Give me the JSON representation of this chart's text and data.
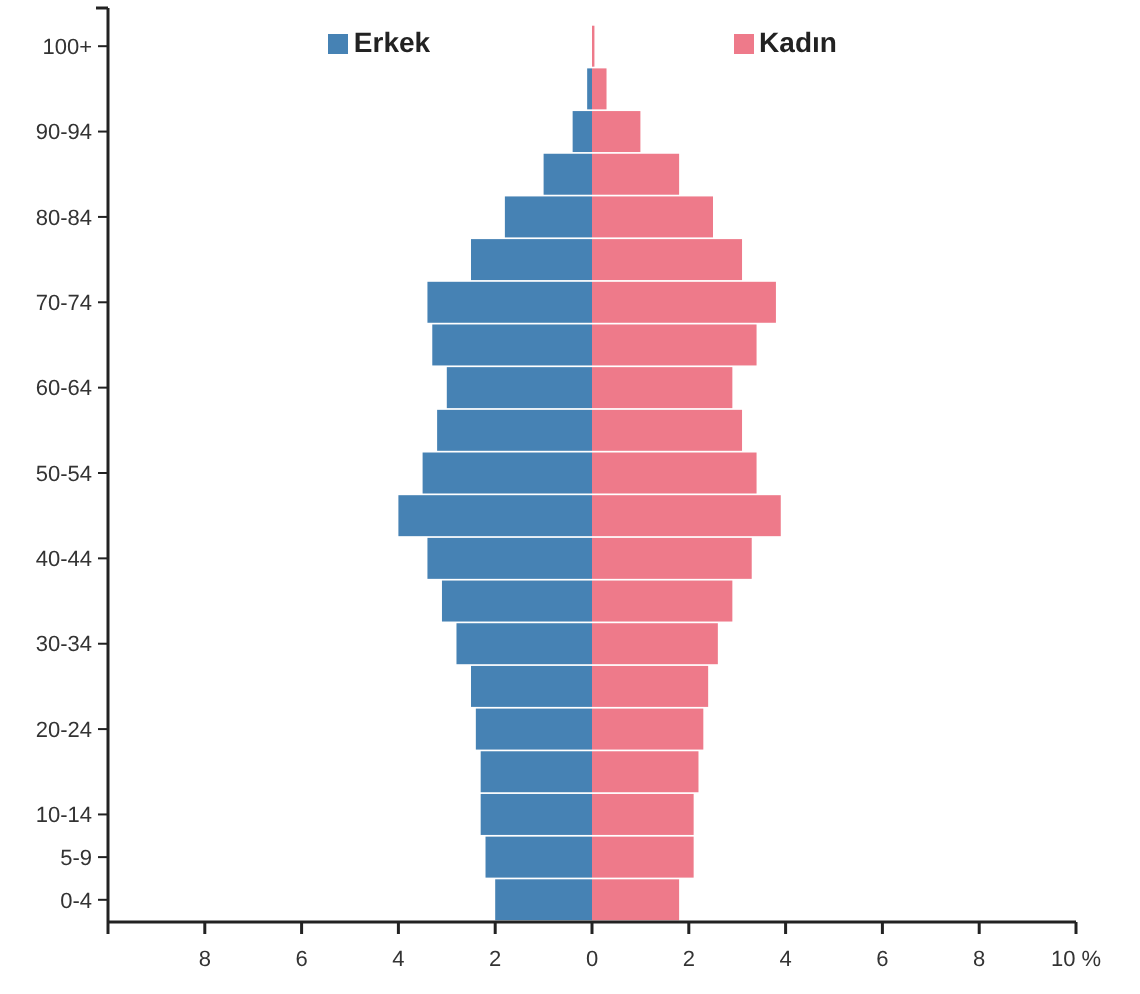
{
  "chart_data": {
    "type": "bar",
    "orientation": "horizontal",
    "categories": [
      "100+",
      null,
      "90-94",
      null,
      "80-84",
      null,
      "70-74",
      null,
      "60-64",
      null,
      "50-54",
      null,
      "40-44",
      null,
      "30-34",
      null,
      "20-24",
      null,
      "10-14",
      "5-9",
      "0-4"
    ],
    "series": [
      {
        "name": "Erkek",
        "color": "#4682b4",
        "values": [
          0,
          -0.1,
          -0.4,
          -1.0,
          -1.8,
          -2.5,
          -3.4,
          -3.3,
          -3.0,
          -3.2,
          -3.5,
          -4.0,
          -3.4,
          -3.1,
          -2.8,
          -2.5,
          -2.4,
          -2.3,
          -2.3,
          -2.2,
          -2.0
        ]
      },
      {
        "name": "Kadın",
        "color": "#ee7a8a",
        "values": [
          0.05,
          0.3,
          1.0,
          1.8,
          2.5,
          3.1,
          3.8,
          3.4,
          2.9,
          3.1,
          3.4,
          3.9,
          3.3,
          2.9,
          2.6,
          2.4,
          2.3,
          2.2,
          2.1,
          2.1,
          1.8
        ]
      }
    ],
    "xlim": [
      -10,
      10
    ],
    "xticks": [
      {
        "value": -10,
        "label": null
      },
      {
        "value": -8,
        "label": "8"
      },
      {
        "value": -6,
        "label": "6"
      },
      {
        "value": -4,
        "label": "4"
      },
      {
        "value": -2,
        "label": "2"
      },
      0,
      2,
      4,
      6,
      8,
      {
        "value": 10,
        "label": "10 %"
      }
    ],
    "stacked": true,
    "legend": "top",
    "grid": false
  }
}
